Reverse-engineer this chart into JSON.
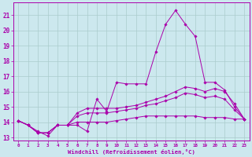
{
  "xlabel": "Windchill (Refroidissement éolien,°C)",
  "bg_color": "#cce8ee",
  "grid_color": "#aacccc",
  "line_color": "#aa00aa",
  "xlim": [
    -0.5,
    23.5
  ],
  "ylim": [
    12.8,
    21.8
  ],
  "yticks": [
    13,
    14,
    15,
    16,
    17,
    18,
    19,
    20,
    21
  ],
  "xticks": [
    0,
    1,
    2,
    3,
    4,
    5,
    6,
    7,
    8,
    9,
    10,
    11,
    12,
    13,
    14,
    15,
    16,
    17,
    18,
    19,
    20,
    21,
    22,
    23
  ],
  "series": [
    {
      "x": [
        0,
        1,
        2,
        3,
        4,
        5,
        6,
        7,
        8,
        9,
        10,
        11,
        12,
        13,
        14,
        15,
        16,
        17,
        18,
        19,
        20,
        21,
        22,
        23
      ],
      "y": [
        14.1,
        13.8,
        13.4,
        13.1,
        13.8,
        13.8,
        13.8,
        13.4,
        15.5,
        14.7,
        16.6,
        16.5,
        16.5,
        16.5,
        18.6,
        20.4,
        21.3,
        20.4,
        19.6,
        16.6,
        16.6,
        16.1,
        15.0,
        14.2
      ]
    },
    {
      "x": [
        0,
        1,
        2,
        3,
        4,
        5,
        6,
        7,
        8,
        9,
        10,
        11,
        12,
        13,
        14,
        15,
        16,
        17,
        18,
        19,
        20,
        21,
        22,
        23
      ],
      "y": [
        14.1,
        13.8,
        13.3,
        13.3,
        13.8,
        13.8,
        14.6,
        14.9,
        14.9,
        14.9,
        14.9,
        15.0,
        15.1,
        15.3,
        15.5,
        15.7,
        16.0,
        16.3,
        16.2,
        16.0,
        16.2,
        16.0,
        15.2,
        14.2
      ]
    },
    {
      "x": [
        0,
        1,
        2,
        3,
        4,
        5,
        6,
        7,
        8,
        9,
        10,
        11,
        12,
        13,
        14,
        15,
        16,
        17,
        18,
        19,
        20,
        21,
        22,
        23
      ],
      "y": [
        14.1,
        13.8,
        13.3,
        13.3,
        13.8,
        13.8,
        14.4,
        14.6,
        14.6,
        14.6,
        14.7,
        14.8,
        14.9,
        15.1,
        15.2,
        15.4,
        15.6,
        15.9,
        15.8,
        15.6,
        15.7,
        15.5,
        14.8,
        14.2
      ]
    },
    {
      "x": [
        0,
        1,
        2,
        3,
        4,
        5,
        6,
        7,
        8,
        9,
        10,
        11,
        12,
        13,
        14,
        15,
        16,
        17,
        18,
        19,
        20,
        21,
        22,
        23
      ],
      "y": [
        14.1,
        13.8,
        13.3,
        13.3,
        13.8,
        13.8,
        14.0,
        14.0,
        14.0,
        14.0,
        14.1,
        14.2,
        14.3,
        14.4,
        14.4,
        14.4,
        14.4,
        14.4,
        14.4,
        14.3,
        14.3,
        14.3,
        14.2,
        14.2
      ]
    }
  ]
}
